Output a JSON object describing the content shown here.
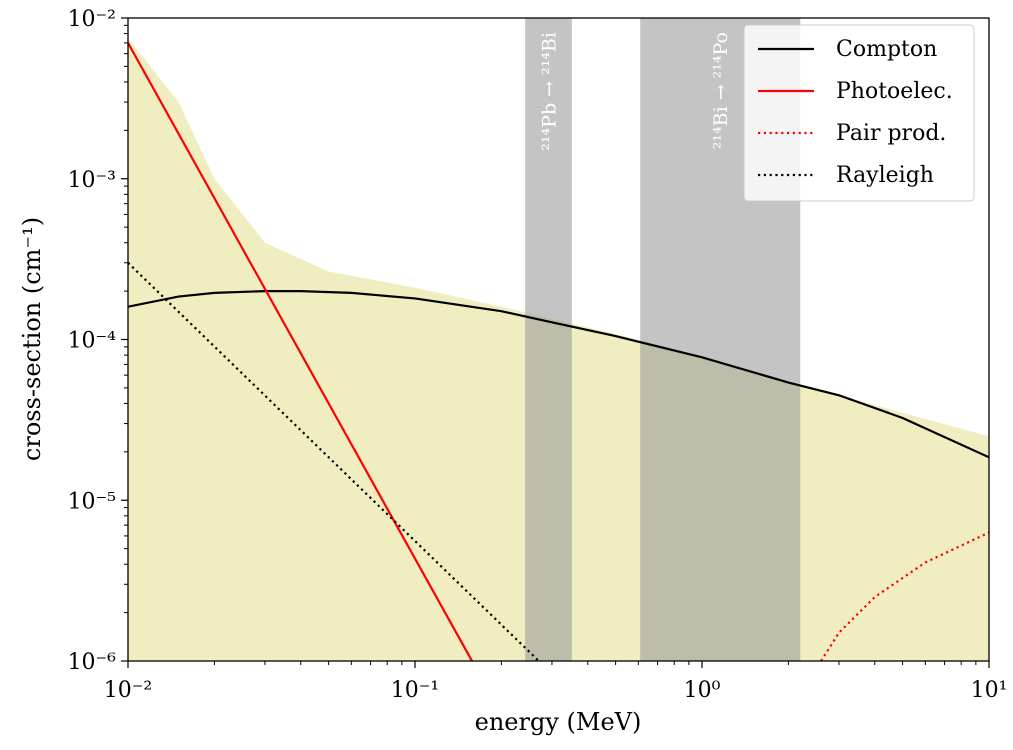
{
  "chart_data": {
    "type": "line",
    "title": "",
    "xlabel": "energy (MeV)",
    "ylabel": "cross-section (cm⁻¹)",
    "xscale": "log",
    "yscale": "log",
    "xlim": [
      0.01,
      10
    ],
    "ylim": [
      1e-06,
      0.01
    ],
    "grid": false,
    "legend_position": "top-right",
    "x_ticks": [
      {
        "value": 0.01,
        "label": "10⁻²"
      },
      {
        "value": 0.1,
        "label": "10⁻¹"
      },
      {
        "value": 1,
        "label": "10⁰"
      },
      {
        "value": 10,
        "label": "10¹"
      }
    ],
    "y_ticks": [
      {
        "value": 1e-06,
        "label": "10⁻⁶"
      },
      {
        "value": 1e-05,
        "label": "10⁻⁵"
      },
      {
        "value": 0.0001,
        "label": "10⁻⁴"
      },
      {
        "value": 0.001,
        "label": "10⁻³"
      },
      {
        "value": 0.01,
        "label": "10⁻²"
      }
    ],
    "series": [
      {
        "name": "Compton",
        "color": "#000000",
        "style": "solid",
        "points": [
          [
            0.01,
            0.00016
          ],
          [
            0.015,
            0.000185
          ],
          [
            0.02,
            0.000195
          ],
          [
            0.03,
            0.0002
          ],
          [
            0.04,
            0.0002
          ],
          [
            0.06,
            0.000195
          ],
          [
            0.1,
            0.00018
          ],
          [
            0.2,
            0.00015
          ],
          [
            0.3,
            0.000128
          ],
          [
            0.5,
            0.000105
          ],
          [
            1,
            7.75e-05
          ],
          [
            2,
            5.4e-05
          ],
          [
            3,
            4.5e-05
          ],
          [
            5,
            3.25e-05
          ],
          [
            10,
            1.85e-05
          ]
        ]
      },
      {
        "name": "Photoelec.",
        "color": "#ff0000",
        "style": "solid",
        "points": [
          [
            0.01,
            0.007
          ],
          [
            0.158,
            1e-06
          ]
        ]
      },
      {
        "name": "Pair prod.",
        "color": "#ff0000",
        "style": "dotted",
        "points": [
          [
            2.6,
            1e-06
          ],
          [
            3,
            1.5e-06
          ],
          [
            4,
            2.5e-06
          ],
          [
            6,
            4.1e-06
          ],
          [
            10,
            6.3e-06
          ]
        ]
      },
      {
        "name": "Rayleigh",
        "color": "#000000",
        "style": "dotted",
        "points": [
          [
            0.01,
            0.0003
          ],
          [
            0.27,
            1e-06
          ]
        ]
      }
    ],
    "total_area": {
      "color": "#f0eec0",
      "points": [
        [
          0.01,
          0.0075
        ],
        [
          0.015,
          0.003
        ],
        [
          0.02,
          0.001
        ],
        [
          0.03,
          0.0004
        ],
        [
          0.05,
          0.000265
        ],
        [
          0.1,
          0.00021
        ],
        [
          0.2,
          0.00016
        ],
        [
          0.5,
          0.000108
        ],
        [
          1,
          7.9e-05
        ],
        [
          2,
          5.5e-05
        ],
        [
          5,
          3.5e-05
        ],
        [
          10,
          2.5e-05
        ]
      ]
    },
    "bands": [
      {
        "x0": 0.242,
        "x1": 0.352,
        "label": "²¹⁴Pb → ²¹⁴Bi",
        "color": "#999999"
      },
      {
        "x0": 0.609,
        "x1": 2.2,
        "label": "²¹⁴Bi → ²¹⁴Po",
        "color": "#999999"
      }
    ]
  }
}
